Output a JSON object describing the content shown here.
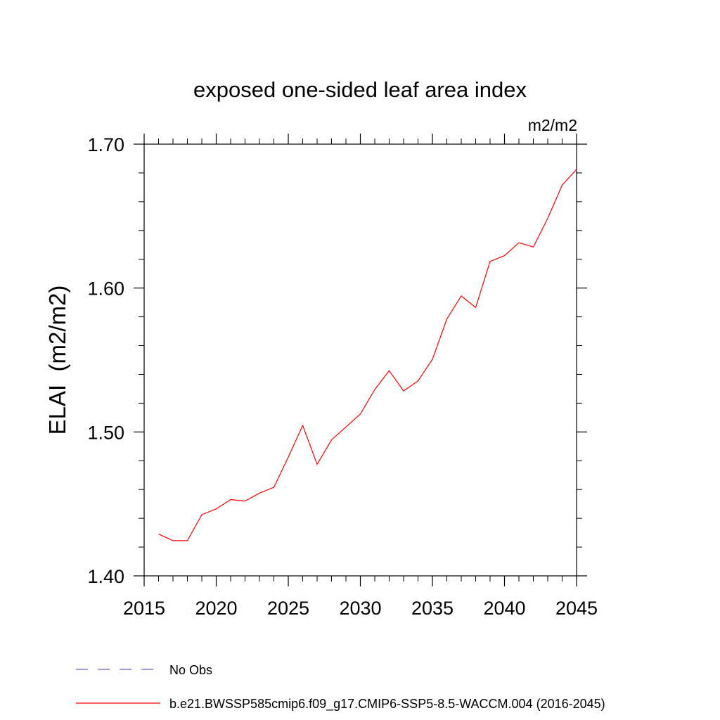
{
  "chart_data": {
    "type": "line",
    "title": "exposed one-sided leaf area index",
    "units_label": "m2/m2",
    "ylabel": "ELAI  (m2/m2)",
    "xlabel": "",
    "xlim": [
      2015,
      2045
    ],
    "ylim": [
      1.4,
      1.7
    ],
    "x_ticks": [
      2015,
      2020,
      2025,
      2030,
      2035,
      2040,
      2045
    ],
    "x_tick_labels": [
      "2015",
      "2020",
      "2025",
      "2030",
      "2035",
      "2040",
      "2045"
    ],
    "y_ticks": [
      1.4,
      1.5,
      1.6,
      1.7
    ],
    "y_tick_labels": [
      "1.40",
      "1.50",
      "1.60",
      "1.70"
    ],
    "y_minor_step": 0.02,
    "x_minor_step": 1,
    "grid": false,
    "series": [
      {
        "name": "b.e21.BWSSP585cmip6.f09_g17.CMIP6-SSP5-8.5-WACCM.004 (2016-2045)",
        "color": "#ff0000",
        "x": [
          2016,
          2017,
          2018,
          2019,
          2020,
          2021,
          2022,
          2023,
          2024,
          2025,
          2026,
          2027,
          2028,
          2029,
          2030,
          2031,
          2032,
          2033,
          2034,
          2035,
          2036,
          2037,
          2038,
          2039,
          2040,
          2041,
          2042,
          2043,
          2044,
          2045
        ],
        "values": [
          1.429,
          1.4245,
          1.4245,
          1.4425,
          1.4465,
          1.453,
          1.452,
          1.4575,
          1.4615,
          1.4825,
          1.5045,
          1.4775,
          1.4945,
          1.5035,
          1.5125,
          1.5295,
          1.5425,
          1.5285,
          1.5355,
          1.5505,
          1.5785,
          1.5945,
          1.5865,
          1.6185,
          1.6225,
          1.6315,
          1.6285,
          1.6485,
          1.6715,
          1.6825
        ]
      }
    ],
    "legend": [
      {
        "label": "No Obs",
        "color": "#6a5acd",
        "style": "dashed"
      },
      {
        "label": "b.e21.BWSSP585cmip6.f09_g17.CMIP6-SSP5-8.5-WACCM.004 (2016-2045)",
        "color": "#ff0000",
        "style": "solid"
      }
    ],
    "legend_position": "bottom-left"
  }
}
